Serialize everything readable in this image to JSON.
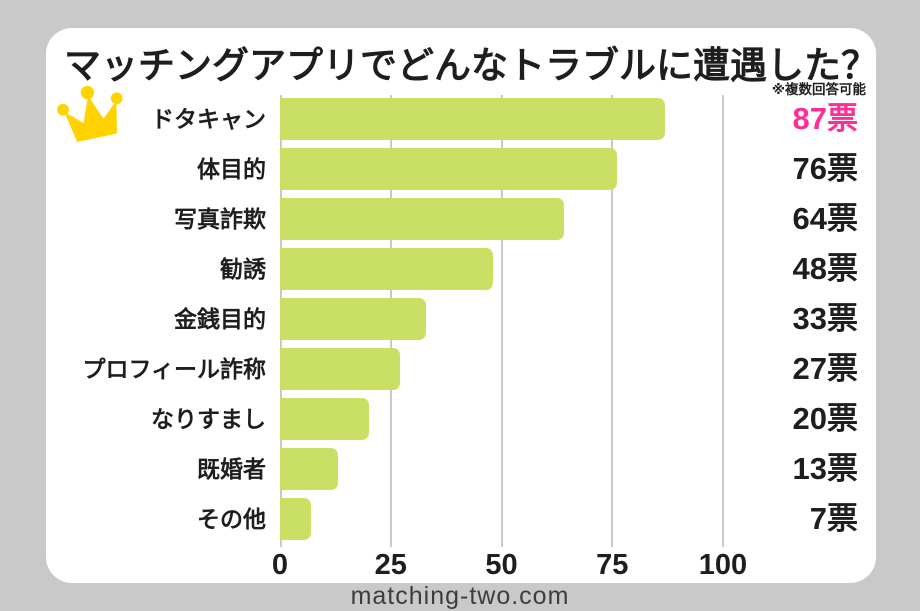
{
  "theme": {
    "background": "#c9c9c9",
    "card": "#ffffff",
    "text": "#1e1e1e",
    "bar_color": "#c9e065",
    "highlight_color": "#ff2d96",
    "crown_color": "#ffd200",
    "grid_color": "#c9c9c9",
    "footer_text_color": "#3d3d3d"
  },
  "header": {
    "title": "マッチングアプリでどんなトラブルに遭遇した？",
    "note": "※複数回答可能"
  },
  "chart_data": {
    "type": "bar",
    "orientation": "horizontal",
    "title": "マッチングアプリでどんなトラブルに遭遇した？",
    "categories": [
      "ドタキャン",
      "体目的",
      "写真詐欺",
      "勧誘",
      "金銭目的",
      "プロフィール詐称",
      "なりすまし",
      "既婚者",
      "その他"
    ],
    "values": [
      87,
      76,
      64,
      48,
      33,
      27,
      20,
      13,
      7
    ],
    "value_labels": [
      "87票",
      "76票",
      "64票",
      "48票",
      "33票",
      "27票",
      "20票",
      "13票",
      "7票"
    ],
    "highlight_index": 0,
    "x_ticks": [
      "0",
      "25",
      "50",
      "75",
      "100"
    ],
    "xlim": [
      0,
      100
    ],
    "grid": true,
    "legend": false,
    "unit": "票"
  },
  "icons": {
    "crown": "crown-icon"
  },
  "footer": {
    "site": "matching-two.com"
  }
}
